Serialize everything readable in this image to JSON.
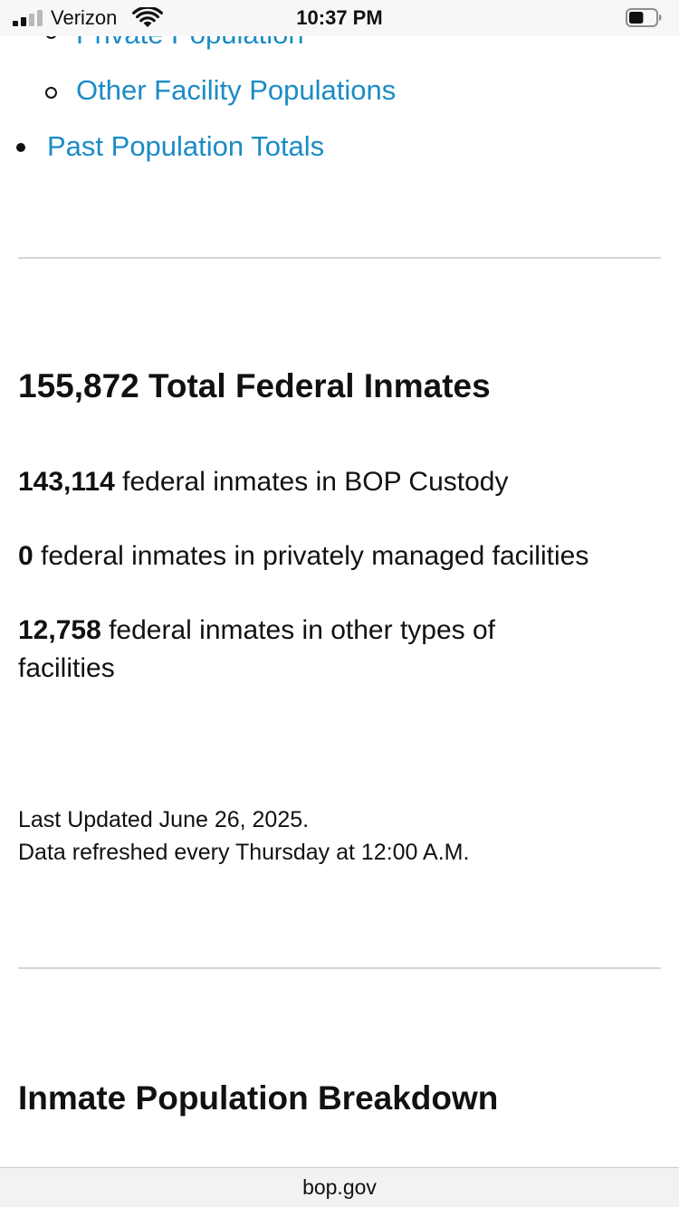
{
  "status_bar": {
    "carrier": "Verizon",
    "time": "10:37 PM",
    "battery_level": 0.55
  },
  "nav_links": {
    "private_population": "Private Population",
    "other_facility_populations": "Other Facility Populations",
    "past_population_totals": "Past Population Totals"
  },
  "totals": {
    "heading": "155,872 Total Federal Inmates",
    "items": [
      {
        "value": "143,114",
        "text": " federal inmates in BOP Custody"
      },
      {
        "value": "0",
        "text": " federal inmates in privately managed facilities"
      },
      {
        "value": "12,758",
        "text": " federal inmates in other types of facilities"
      }
    ]
  },
  "update_note": {
    "last_updated": "Last Updated June 26, 2025.",
    "refresh": "Data refreshed every Thursday at 12:00 A.M."
  },
  "breakdown": {
    "heading": "Inmate Population Breakdown"
  },
  "url_bar": {
    "domain": "bop.gov"
  },
  "colors": {
    "link": "#1b8bc7",
    "divider": "#d6d6d6",
    "status_bar_bg": "#f7f7f7"
  }
}
